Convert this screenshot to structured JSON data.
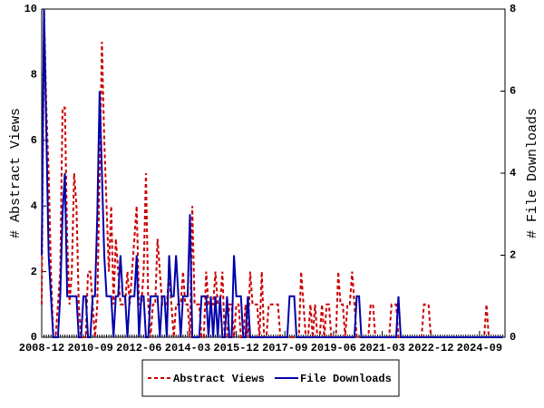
{
  "chart_data": {
    "type": "line",
    "x": [
      "2008-12",
      "2009-01",
      "2009-02",
      "2009-03",
      "2009-04",
      "2009-05",
      "2009-06",
      "2009-07",
      "2009-08",
      "2009-09",
      "2009-10",
      "2009-11",
      "2009-12",
      "2010-01",
      "2010-02",
      "2010-03",
      "2010-04",
      "2010-05",
      "2010-06",
      "2010-07",
      "2010-08",
      "2010-09",
      "2010-10",
      "2010-11",
      "2010-12",
      "2011-01",
      "2011-02",
      "2011-03",
      "2011-04",
      "2011-05",
      "2011-06",
      "2011-07",
      "2011-08",
      "2011-09",
      "2011-10",
      "2011-11",
      "2011-12",
      "2012-01",
      "2012-02",
      "2012-03",
      "2012-04",
      "2012-05",
      "2012-06",
      "2012-07",
      "2012-08",
      "2012-09",
      "2012-10",
      "2012-11",
      "2012-12",
      "2013-01",
      "2013-02",
      "2013-03",
      "2013-04",
      "2013-05",
      "2013-06",
      "2013-07",
      "2013-08",
      "2013-09",
      "2013-10",
      "2013-11",
      "2013-12",
      "2014-01",
      "2014-02",
      "2014-03",
      "2014-04",
      "2014-05",
      "2014-06",
      "2014-07",
      "2014-08",
      "2014-09",
      "2014-10",
      "2014-11",
      "2014-12",
      "2015-01",
      "2015-02",
      "2015-03",
      "2015-04",
      "2015-05",
      "2015-06",
      "2015-07",
      "2015-08",
      "2015-09",
      "2015-10",
      "2015-11",
      "2015-12",
      "2016-01",
      "2016-02",
      "2016-03",
      "2016-04",
      "2016-05",
      "2016-06",
      "2016-07",
      "2016-08",
      "2016-09",
      "2016-10",
      "2016-11",
      "2016-12",
      "2017-01",
      "2017-02",
      "2017-03",
      "2017-04",
      "2017-05",
      "2017-06",
      "2017-07",
      "2017-08",
      "2017-09",
      "2017-10",
      "2017-11",
      "2017-12",
      "2018-01",
      "2018-02",
      "2018-03",
      "2018-04",
      "2018-05",
      "2018-06",
      "2018-07",
      "2018-08",
      "2018-09",
      "2018-10",
      "2018-11",
      "2018-12",
      "2019-01",
      "2019-02",
      "2019-03",
      "2019-04",
      "2019-05",
      "2019-06",
      "2019-07",
      "2019-08",
      "2019-09",
      "2019-10",
      "2019-11",
      "2019-12",
      "2020-01",
      "2020-02",
      "2020-03",
      "2020-04",
      "2020-05",
      "2020-06",
      "2020-07",
      "2020-08",
      "2020-09",
      "2020-10",
      "2020-11",
      "2020-12",
      "2021-01",
      "2021-02",
      "2021-03",
      "2021-04",
      "2021-05",
      "2021-06",
      "2021-07",
      "2021-08",
      "2021-09",
      "2021-10",
      "2021-11",
      "2021-12",
      "2022-01",
      "2022-02",
      "2022-03",
      "2022-04",
      "2022-05",
      "2022-06",
      "2022-07",
      "2022-08",
      "2022-09",
      "2022-10",
      "2022-11",
      "2022-12",
      "2023-01",
      "2023-02",
      "2023-03",
      "2023-04",
      "2023-05",
      "2023-06",
      "2023-07",
      "2023-08",
      "2023-09",
      "2023-10",
      "2023-11",
      "2023-12",
      "2024-01",
      "2024-02",
      "2024-03",
      "2024-04",
      "2024-05",
      "2024-06",
      "2024-07",
      "2024-08",
      "2024-09",
      "2024-10",
      "2024-11",
      "2024-12",
      "2025-01",
      "2025-02",
      "2025-03",
      "2025-04",
      "2025-05",
      "2025-06",
      "2025-07"
    ],
    "series": [
      {
        "name": "Abstract Views",
        "color": "#cc0000",
        "axis": "y",
        "dash": true,
        "values": [
          1,
          10,
          7,
          5,
          2,
          0,
          0,
          1,
          2,
          7,
          7,
          3,
          1,
          2,
          5,
          4,
          1,
          0,
          0,
          0,
          2,
          2,
          1,
          0,
          1,
          5,
          9,
          6,
          4,
          2,
          4,
          1,
          3,
          2,
          1,
          1,
          1,
          2,
          1,
          2,
          3,
          4,
          1,
          1,
          2,
          5,
          1,
          0,
          1,
          1,
          3,
          2,
          1,
          1,
          1,
          2,
          1,
          0,
          1,
          1,
          1,
          2,
          1,
          1,
          0,
          4,
          1,
          1,
          1,
          0,
          0,
          2,
          1,
          1,
          1,
          2,
          1,
          1,
          2,
          0,
          0,
          1,
          1,
          0,
          1,
          1,
          0,
          0,
          1,
          0,
          2,
          1,
          1,
          1,
          0,
          2,
          0,
          0,
          1,
          1,
          1,
          1,
          1,
          0,
          0,
          0,
          0,
          0,
          0,
          0,
          0,
          0,
          2,
          1,
          0,
          0,
          1,
          0,
          1,
          0,
          0,
          1,
          0,
          1,
          1,
          0,
          0,
          0,
          2,
          1,
          1,
          0,
          1,
          1,
          2,
          1,
          0,
          0,
          0,
          0,
          0,
          0,
          1,
          1,
          0,
          0,
          0,
          0,
          0,
          0,
          0,
          1,
          1,
          1,
          0,
          0,
          0,
          0,
          0,
          0,
          0,
          0,
          0,
          0,
          0,
          1,
          1,
          1,
          0,
          0,
          0,
          0,
          0,
          0,
          0,
          0,
          0,
          0,
          0,
          0,
          0,
          0,
          0,
          0,
          0,
          0,
          0,
          0,
          0,
          0,
          0,
          0,
          1,
          0,
          0,
          0,
          0,
          0,
          0,
          0
        ]
      },
      {
        "name": "File Downloads",
        "color": "#0000aa",
        "axis": "y2",
        "dash": false,
        "values": [
          2,
          8,
          5,
          2,
          1,
          0,
          0,
          0,
          1,
          3,
          4,
          1,
          1,
          1,
          1,
          1,
          0,
          0,
          1,
          1,
          0,
          0,
          1,
          1,
          3,
          6,
          4,
          2,
          1,
          1,
          1,
          0,
          1,
          1,
          2,
          1,
          1,
          0,
          1,
          1,
          1,
          2,
          0,
          1,
          1,
          0,
          0,
          1,
          1,
          1,
          1,
          0,
          1,
          1,
          0,
          2,
          1,
          1,
          2,
          1,
          0,
          1,
          1,
          1,
          3,
          0,
          0,
          0,
          0,
          1,
          1,
          1,
          0,
          1,
          0,
          1,
          0,
          1,
          0,
          0,
          1,
          0,
          0,
          2,
          1,
          1,
          1,
          0,
          0,
          1,
          0,
          0,
          0,
          0,
          0,
          0,
          0,
          0,
          0,
          0,
          0,
          0,
          0,
          0,
          0,
          0,
          0,
          1,
          1,
          1,
          0,
          0,
          0,
          0,
          0,
          0,
          0,
          0,
          0,
          0,
          0,
          0,
          0,
          0,
          0,
          0,
          0,
          0,
          0,
          0,
          0,
          0,
          0,
          0,
          0,
          0,
          1,
          1,
          0,
          0,
          0,
          0,
          0,
          0,
          0,
          0,
          0,
          0,
          0,
          0,
          0,
          0,
          0,
          0,
          1,
          0,
          0,
          0,
          0,
          0,
          0,
          0,
          0,
          0,
          0,
          0,
          0,
          0,
          0,
          0,
          0,
          0,
          0,
          0,
          0,
          0,
          0,
          0,
          0,
          0,
          0,
          0,
          0,
          0,
          0,
          0,
          0,
          0,
          0,
          0,
          0,
          0,
          0,
          0,
          0,
          0,
          0,
          0,
          0,
          0
        ]
      }
    ],
    "ylabel": "# Abstract Views",
    "y2label": "# File Downloads",
    "ylim": [
      0,
      10
    ],
    "yticks": [
      0,
      2,
      4,
      6,
      8,
      10
    ],
    "y2lim": [
      0,
      8
    ],
    "y2ticks": [
      0,
      2,
      4,
      6,
      8
    ],
    "xticks": [
      "2008-12",
      "2010-09",
      "2012-06",
      "2014-03",
      "2015-12",
      "2017-09",
      "2019-06",
      "2021-03",
      "2022-12",
      "2024-09"
    ],
    "legend": "bottom"
  }
}
